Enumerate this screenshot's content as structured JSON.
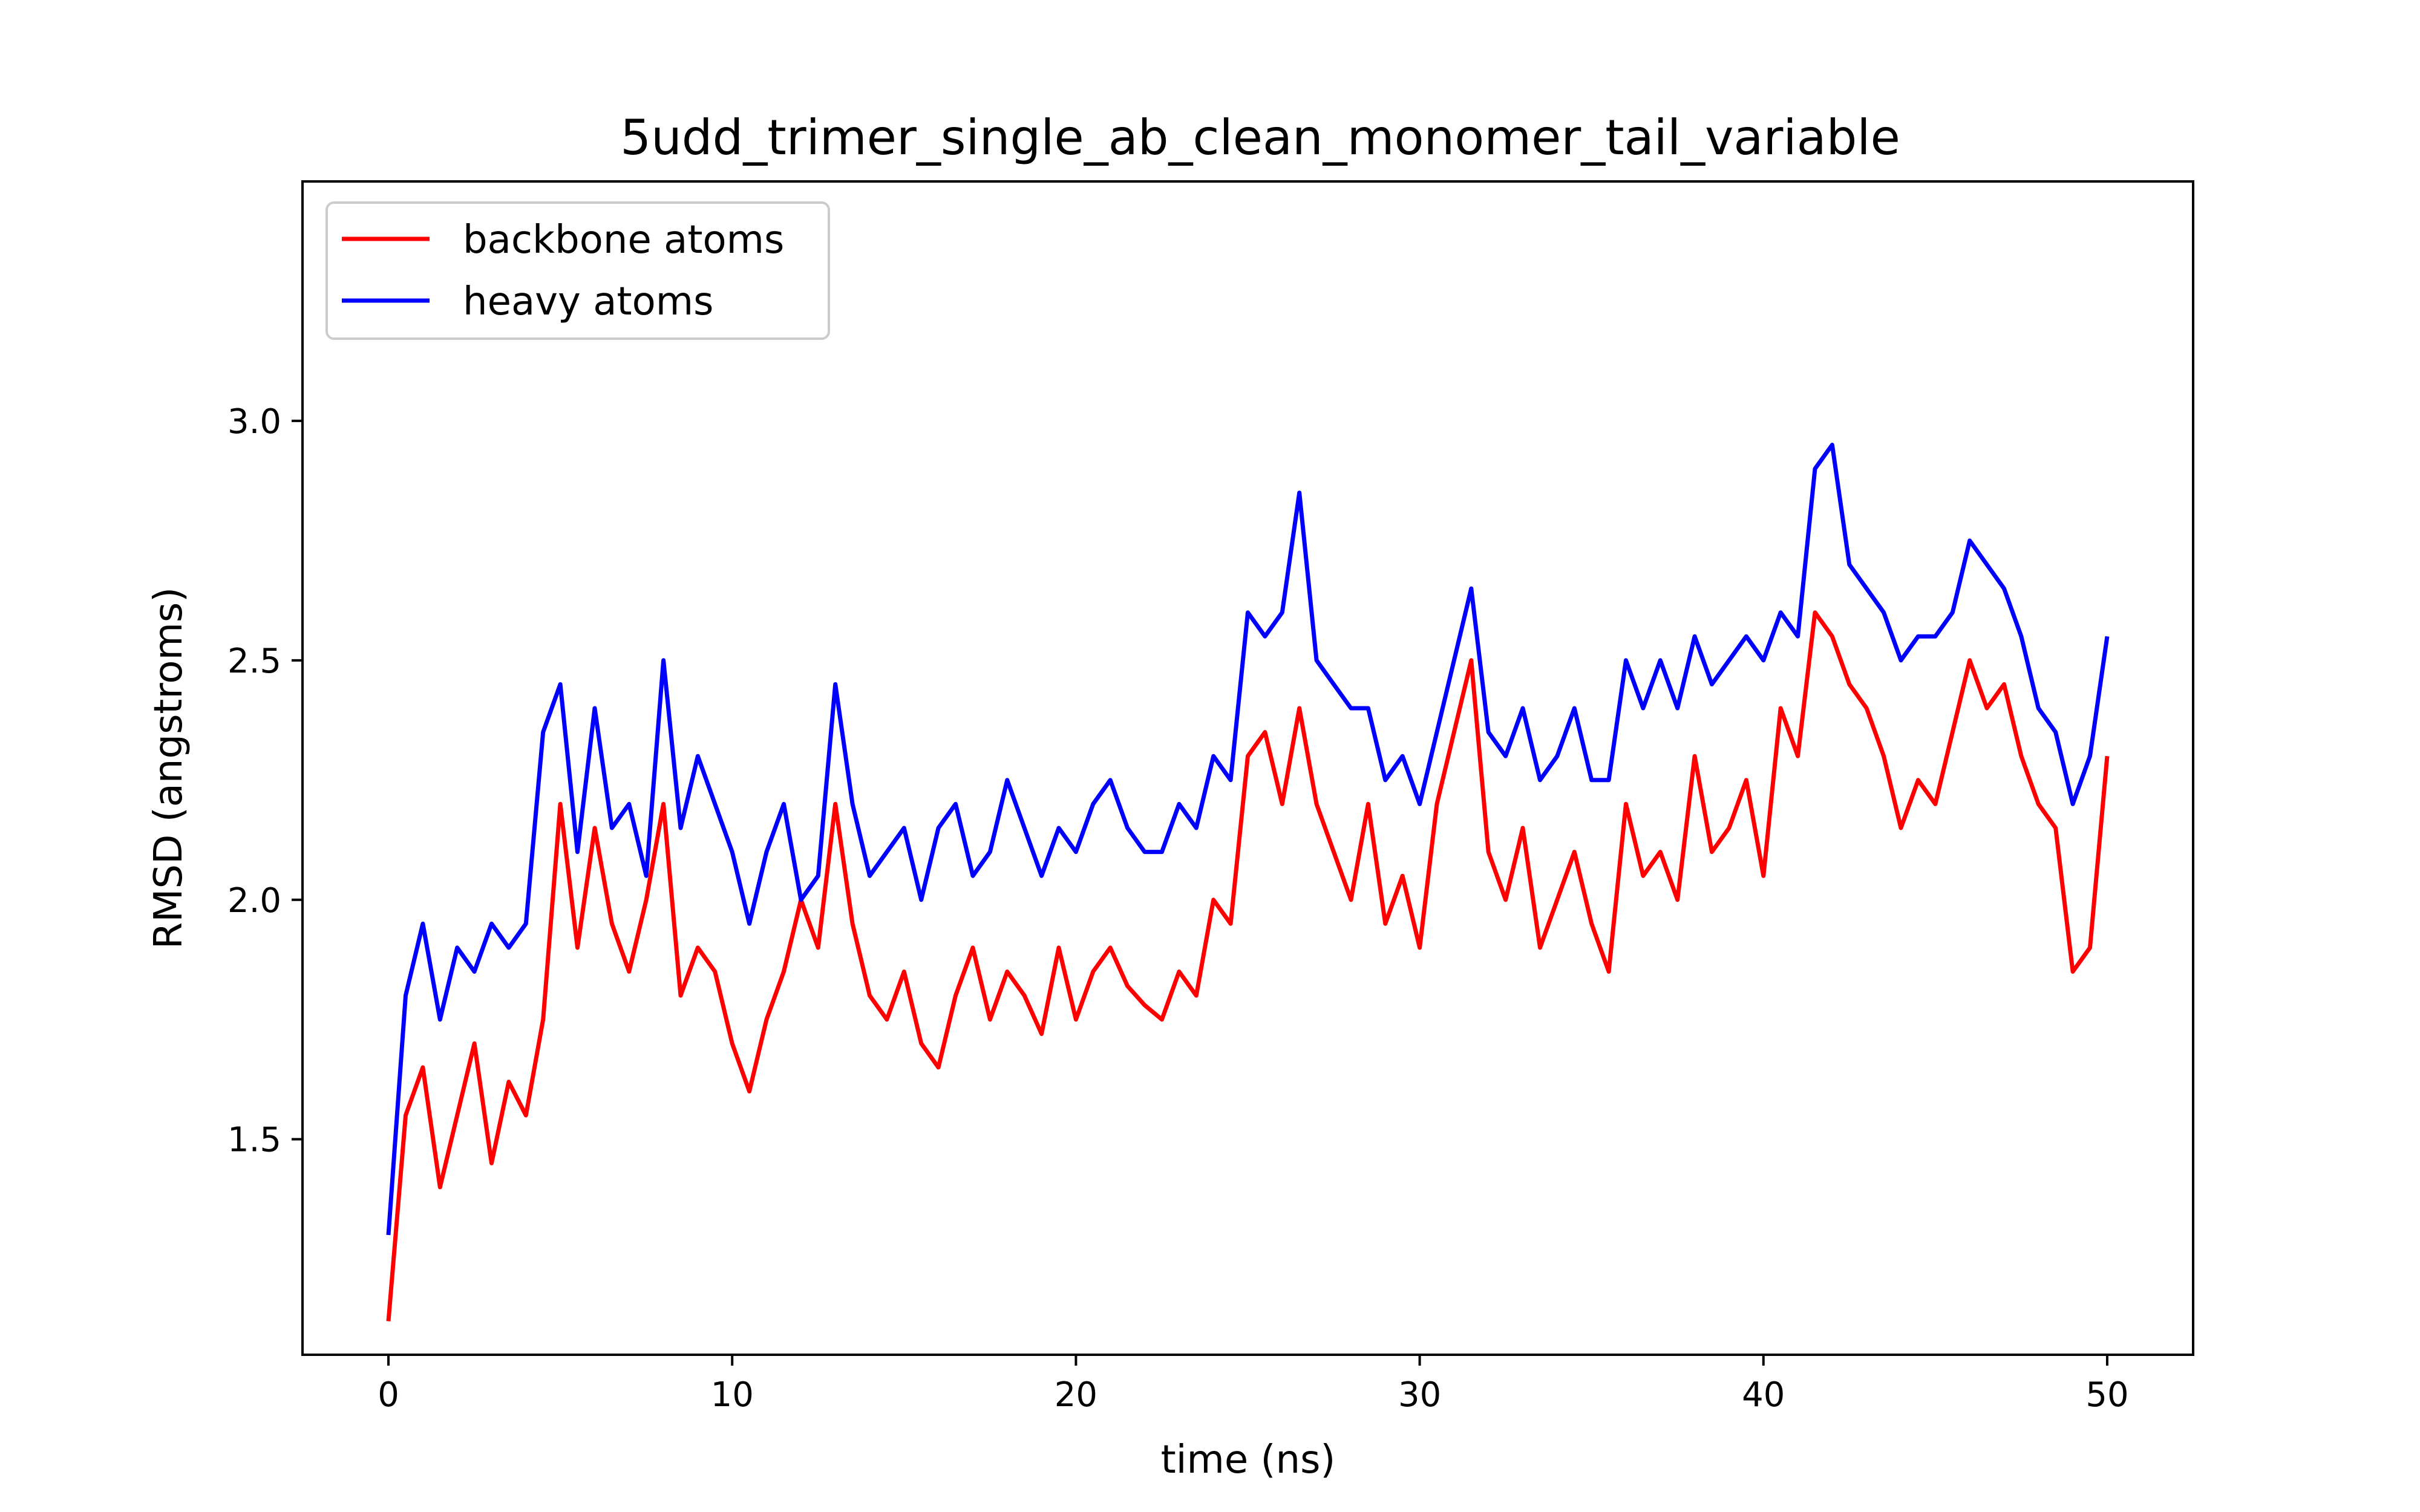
{
  "chart_data": {
    "type": "line",
    "title": "5udd_trimer_single_ab_clean_monomer_tail_variable",
    "xlabel": "time (ns)",
    "ylabel": "RMSD (angstroms)",
    "xlim": [
      -2.5,
      52.5
    ],
    "ylim": [
      1.05,
      3.5
    ],
    "xticks": [
      0,
      10,
      20,
      30,
      40,
      50
    ],
    "yticks": [
      1.5,
      2.0,
      2.5,
      3.0
    ],
    "xtick_labels": [
      "0",
      "10",
      "20",
      "30",
      "40",
      "50"
    ],
    "ytick_labels": [
      "1.5",
      "2.0",
      "2.5",
      "3.0"
    ],
    "legend_position": "upper-left",
    "grid": false,
    "series": [
      {
        "name": "backbone atoms",
        "color": "#ff0000",
        "x": [
          0,
          0.5,
          1,
          1.5,
          2,
          2.5,
          3,
          3.5,
          4,
          4.5,
          5,
          5.5,
          6,
          6.5,
          7,
          7.5,
          8,
          8.5,
          9,
          9.5,
          10,
          10.5,
          11,
          11.5,
          12,
          12.5,
          13,
          13.5,
          14,
          14.5,
          15,
          15.5,
          16,
          16.5,
          17,
          17.5,
          18,
          18.5,
          19,
          19.5,
          20,
          20.5,
          21,
          21.5,
          22,
          22.5,
          23,
          23.5,
          24,
          24.5,
          25,
          25.5,
          26,
          26.5,
          27,
          27.5,
          28,
          28.5,
          29,
          29.5,
          30,
          30.5,
          31,
          31.5,
          32,
          32.5,
          33,
          33.5,
          34,
          34.5,
          35,
          35.5,
          36,
          36.5,
          37,
          37.5,
          38,
          38.5,
          39,
          39.5,
          40,
          40.5,
          41,
          41.5,
          42,
          42.5,
          43,
          43.5,
          44,
          44.5,
          45,
          45.5,
          46,
          46.5,
          47,
          47.5,
          48,
          48.5,
          49,
          49.5,
          50
        ],
        "y": [
          1.12,
          1.55,
          1.65,
          1.4,
          1.55,
          1.7,
          1.45,
          1.62,
          1.55,
          1.75,
          2.2,
          1.9,
          2.15,
          1.95,
          1.85,
          2.0,
          2.2,
          1.8,
          1.9,
          1.85,
          1.7,
          1.6,
          1.75,
          1.85,
          2.0,
          1.9,
          2.2,
          1.95,
          1.8,
          1.75,
          1.85,
          1.7,
          1.65,
          1.8,
          1.9,
          1.75,
          1.85,
          1.8,
          1.72,
          1.9,
          1.75,
          1.85,
          1.9,
          1.82,
          1.78,
          1.75,
          1.85,
          1.8,
          2.0,
          1.95,
          2.3,
          2.35,
          2.2,
          2.4,
          2.2,
          2.1,
          2.0,
          2.2,
          1.95,
          2.05,
          1.9,
          2.2,
          2.35,
          2.5,
          2.1,
          2.0,
          2.15,
          1.9,
          2.0,
          2.1,
          1.95,
          1.85,
          2.2,
          2.05,
          2.1,
          2.0,
          2.3,
          2.1,
          2.15,
          2.25,
          2.05,
          2.4,
          2.3,
          2.6,
          2.55,
          2.45,
          2.4,
          2.3,
          2.15,
          2.25,
          2.2,
          2.35,
          2.5,
          2.4,
          2.45,
          2.3,
          2.2,
          2.15,
          1.85,
          1.9,
          2.3
        ]
      },
      {
        "name": "heavy atoms",
        "color": "#0000ff",
        "x": [
          0,
          0.5,
          1,
          1.5,
          2,
          2.5,
          3,
          3.5,
          4,
          4.5,
          5,
          5.5,
          6,
          6.5,
          7,
          7.5,
          8,
          8.5,
          9,
          9.5,
          10,
          10.5,
          11,
          11.5,
          12,
          12.5,
          13,
          13.5,
          14,
          14.5,
          15,
          15.5,
          16,
          16.5,
          17,
          17.5,
          18,
          18.5,
          19,
          19.5,
          20,
          20.5,
          21,
          21.5,
          22,
          22.5,
          23,
          23.5,
          24,
          24.5,
          25,
          25.5,
          26,
          26.5,
          27,
          27.5,
          28,
          28.5,
          29,
          29.5,
          30,
          30.5,
          31,
          31.5,
          32,
          32.5,
          33,
          33.5,
          34,
          34.5,
          35,
          35.5,
          36,
          36.5,
          37,
          37.5,
          38,
          38.5,
          39,
          39.5,
          40,
          40.5,
          41,
          41.5,
          42,
          42.5,
          43,
          43.5,
          44,
          44.5,
          45,
          45.5,
          46,
          46.5,
          47,
          47.5,
          48,
          48.5,
          49,
          49.5,
          50
        ],
        "y": [
          1.3,
          1.8,
          1.95,
          1.75,
          1.9,
          1.85,
          1.95,
          1.9,
          1.95,
          2.35,
          2.45,
          2.1,
          2.4,
          2.15,
          2.2,
          2.05,
          2.5,
          2.15,
          2.3,
          2.2,
          2.1,
          1.95,
          2.1,
          2.2,
          2.0,
          2.05,
          2.45,
          2.2,
          2.05,
          2.1,
          2.15,
          2.0,
          2.15,
          2.2,
          2.05,
          2.1,
          2.25,
          2.15,
          2.05,
          2.15,
          2.1,
          2.2,
          2.25,
          2.15,
          2.1,
          2.1,
          2.2,
          2.15,
          2.3,
          2.25,
          2.6,
          2.55,
          2.6,
          2.85,
          2.5,
          2.45,
          2.4,
          2.4,
          2.25,
          2.3,
          2.2,
          2.35,
          2.5,
          2.65,
          2.35,
          2.3,
          2.4,
          2.25,
          2.3,
          2.4,
          2.25,
          2.25,
          2.5,
          2.4,
          2.5,
          2.4,
          2.55,
          2.45,
          2.5,
          2.55,
          2.5,
          2.6,
          2.55,
          2.9,
          2.95,
          2.7,
          2.65,
          2.6,
          2.5,
          2.55,
          2.55,
          2.6,
          2.75,
          2.7,
          2.65,
          2.55,
          2.4,
          2.35,
          2.2,
          2.3,
          2.55
        ]
      }
    ]
  }
}
